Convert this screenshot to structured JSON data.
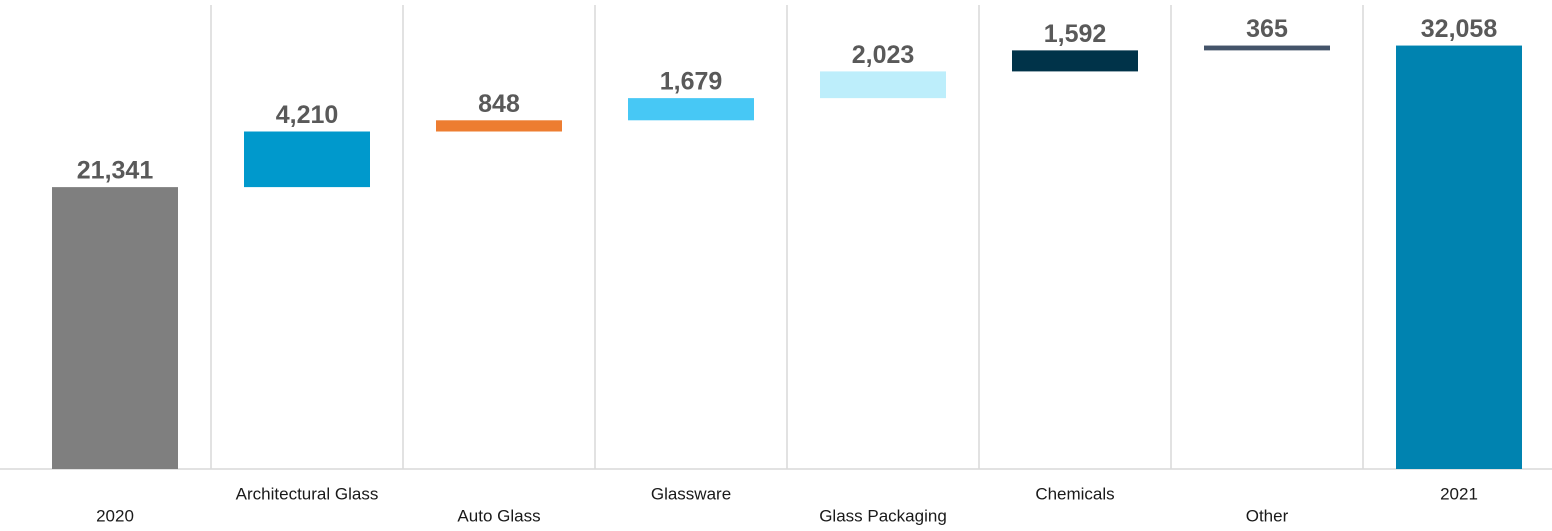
{
  "chart_data": {
    "type": "waterfall",
    "categories": [
      "2020",
      "Architectural Glass",
      "Auto Glass",
      "Glassware",
      "Glass Packaging",
      "Chemicals",
      "Other",
      "2021"
    ],
    "values": [
      21341,
      4210,
      848,
      1679,
      2023,
      1592,
      365,
      32058
    ],
    "value_labels": [
      "21,341",
      "4,210",
      "848",
      "1,679",
      "2,023",
      "1,592",
      "365",
      "32,058"
    ],
    "colors": [
      "#7f7f7f",
      "#0099cc",
      "#ed7d31",
      "#47c8f5",
      "#bdeefb",
      "#003349",
      "#44546a",
      "#0083b0"
    ],
    "ylim": [
      0,
      32100
    ]
  }
}
